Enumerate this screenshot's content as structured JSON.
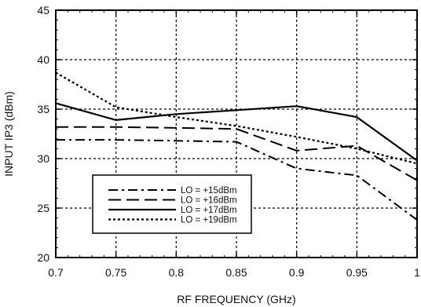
{
  "chart_data": {
    "type": "line",
    "xlabel": "RF FREQUENCY (GHz)",
    "ylabel": "INPUT IP3 (dBm)",
    "xlim": [
      0.7,
      1.0
    ],
    "ylim": [
      20,
      45
    ],
    "x_ticks": [
      "0.7",
      "0.75",
      "0.8",
      "0.85",
      "0.9",
      "0.95",
      "1"
    ],
    "y_ticks": [
      "20",
      "25",
      "30",
      "35",
      "40",
      "45"
    ],
    "grid": true,
    "legend_position": "bottom-left",
    "series": [
      {
        "name": "LO = +15dBm",
        "style": "dash-dot",
        "x": [
          0.7,
          0.75,
          0.8,
          0.85,
          0.9,
          0.95,
          1.0
        ],
        "y": [
          31.9,
          31.9,
          31.8,
          31.7,
          29.0,
          28.3,
          23.8
        ]
      },
      {
        "name": "LO = +16dBm",
        "style": "long-dash",
        "x": [
          0.7,
          0.75,
          0.8,
          0.85,
          0.9,
          0.95,
          1.0
        ],
        "y": [
          33.2,
          33.2,
          33.1,
          33.0,
          30.8,
          31.3,
          27.8
        ]
      },
      {
        "name": "LO = +17dBm",
        "style": "solid",
        "x": [
          0.7,
          0.75,
          0.8,
          0.85,
          0.9,
          0.95,
          1.0
        ],
        "y": [
          35.6,
          33.9,
          34.5,
          34.9,
          35.3,
          34.2,
          29.8
        ]
      },
      {
        "name": "LO = +19dBm",
        "style": "dotted",
        "x": [
          0.7,
          0.75,
          0.8,
          0.85,
          0.9,
          0.95,
          1.0
        ],
        "y": [
          38.7,
          35.2,
          34.2,
          33.3,
          32.2,
          31.0,
          29.5
        ]
      }
    ]
  }
}
